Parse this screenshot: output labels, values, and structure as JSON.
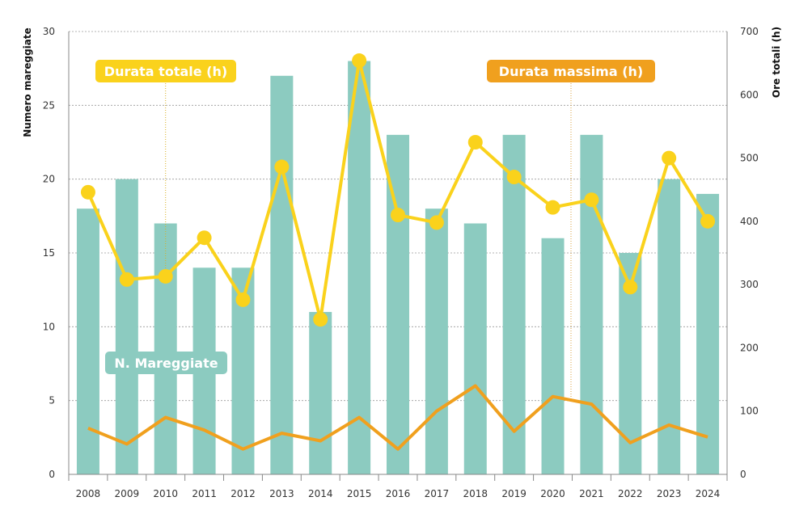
{
  "chart_data": {
    "type": "bar",
    "categories": [
      "2008",
      "2009",
      "2010",
      "2011",
      "2012",
      "2013",
      "2014",
      "2015",
      "2016",
      "2017",
      "2018",
      "2019",
      "2020",
      "2021",
      "2022",
      "2023",
      "2024"
    ],
    "series": [
      {
        "name": "N. Mareggiate",
        "type": "bar",
        "axis": "left",
        "values": [
          18,
          20,
          17,
          14,
          14,
          27,
          11,
          28,
          23,
          18,
          17,
          23,
          16,
          23,
          15,
          20,
          19
        ]
      },
      {
        "name": "Durata totale (h)",
        "type": "line",
        "axis": "right",
        "values": [
          446,
          308,
          313,
          374,
          276,
          486,
          245,
          654,
          410,
          398,
          525,
          470,
          422,
          434,
          296,
          500,
          400
        ]
      },
      {
        "name": "Durata massima (h)",
        "type": "line",
        "axis": "right",
        "values": [
          73,
          48,
          90,
          70,
          40,
          65,
          53,
          90,
          40,
          100,
          140,
          68,
          123,
          111,
          50,
          78,
          59
        ]
      }
    ],
    "ylabel": "Numero mareggiate",
    "y2label": "Ore totali (h)",
    "ylim": [
      0,
      30
    ],
    "y2lim": [
      0,
      700
    ],
    "yticks": [
      0,
      5,
      10,
      15,
      20,
      25,
      30
    ],
    "y2ticks": [
      0,
      100,
      200,
      300,
      400,
      500,
      600,
      700
    ],
    "grid": true,
    "colors": {
      "bars": "#8ccbc0",
      "total": "#fad21c",
      "max": "#f0a01e"
    }
  }
}
